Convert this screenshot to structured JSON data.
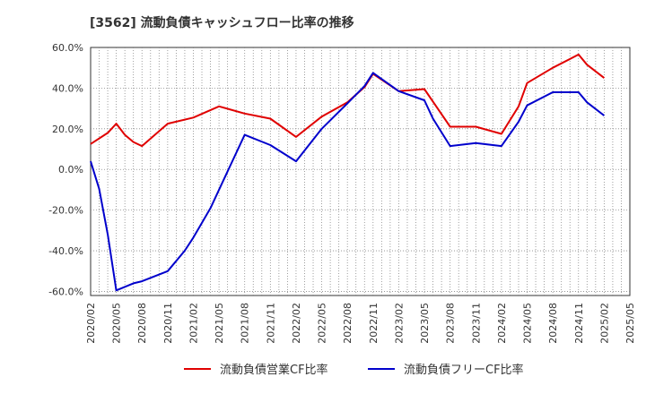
{
  "chart_data": {
    "type": "line",
    "title": "[3562]  流動負債キャッシュフロー比率の推移",
    "xlabel": "",
    "ylabel": "",
    "ylim": [
      -62,
      60
    ],
    "y_ticks": [
      60,
      40,
      20,
      0,
      -20,
      -40,
      -60
    ],
    "y_tick_labels": [
      "60.0%",
      "40.0%",
      "20.0%",
      "0.0%",
      "-20.0%",
      "-40.0%",
      "-60.0%"
    ],
    "x_tick_labels": [
      "2020/02",
      "2020/05",
      "2020/08",
      "2020/11",
      "2021/02",
      "2021/05",
      "2021/08",
      "2021/11",
      "2022/02",
      "2022/05",
      "2022/08",
      "2022/11",
      "2023/02",
      "2023/05",
      "2023/08",
      "2023/11",
      "2024/02",
      "2024/05",
      "2024/08",
      "2024/11",
      "2025/02",
      "2025/05"
    ],
    "grid": true,
    "legend_position": "bottom",
    "series": [
      {
        "name": "流動負債営業CF比率",
        "color": "#e00000",
        "points": [
          [
            "2020/02",
            12.5
          ],
          [
            "2020/04",
            18.0
          ],
          [
            "2020/05",
            22.5
          ],
          [
            "2020/06",
            17.0
          ],
          [
            "2020/07",
            13.5
          ],
          [
            "2020/08",
            11.5
          ],
          [
            "2020/11",
            22.5
          ],
          [
            "2021/02",
            25.5
          ],
          [
            "2021/05",
            31.0
          ],
          [
            "2021/08",
            27.5
          ],
          [
            "2021/11",
            25.0
          ],
          [
            "2022/02",
            16.0
          ],
          [
            "2022/05",
            26.0
          ],
          [
            "2022/08",
            33.0
          ],
          [
            "2022/10",
            40.5
          ],
          [
            "2022/11",
            47.0
          ],
          [
            "2023/02",
            38.5
          ],
          [
            "2023/05",
            39.5
          ],
          [
            "2023/08",
            21.0
          ],
          [
            "2023/11",
            21.0
          ],
          [
            "2024/02",
            17.5
          ],
          [
            "2024/04",
            31.0
          ],
          [
            "2024/05",
            42.5
          ],
          [
            "2024/08",
            50.0
          ],
          [
            "2024/11",
            56.5
          ],
          [
            "2024/12",
            51.5
          ],
          [
            "2025/02",
            45.0
          ]
        ]
      },
      {
        "name": "流動負債フリーCF比率",
        "color": "#0000cc",
        "points": [
          [
            "2020/02",
            4.0
          ],
          [
            "2020/03",
            -9.5
          ],
          [
            "2020/04",
            -32.0
          ],
          [
            "2020/05",
            -59.5
          ],
          [
            "2020/07",
            -56.0
          ],
          [
            "2020/08",
            -55.0
          ],
          [
            "2020/11",
            -50.0
          ],
          [
            "2021/01",
            -40.0
          ],
          [
            "2021/02",
            -33.5
          ],
          [
            "2021/04",
            -19.0
          ],
          [
            "2021/05",
            -10.0
          ],
          [
            "2021/08",
            17.0
          ],
          [
            "2021/11",
            12.0
          ],
          [
            "2022/02",
            4.0
          ],
          [
            "2022/05",
            20.0
          ],
          [
            "2022/08",
            32.5
          ],
          [
            "2022/10",
            41.0
          ],
          [
            "2022/11",
            47.5
          ],
          [
            "2023/02",
            38.5
          ],
          [
            "2023/05",
            34.0
          ],
          [
            "2023/06",
            25.0
          ],
          [
            "2023/08",
            11.5
          ],
          [
            "2023/11",
            13.0
          ],
          [
            "2024/02",
            11.5
          ],
          [
            "2024/04",
            23.5
          ],
          [
            "2024/05",
            31.5
          ],
          [
            "2024/08",
            38.0
          ],
          [
            "2024/11",
            38.0
          ],
          [
            "2024/12",
            33.0
          ],
          [
            "2025/02",
            26.5
          ]
        ]
      }
    ]
  }
}
